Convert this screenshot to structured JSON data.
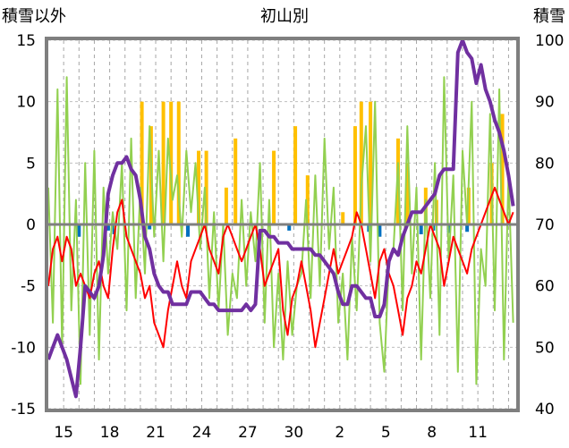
{
  "chart_data": {
    "type": "line",
    "title": "初山別",
    "left_axis": {
      "label": "積雪以外",
      "ylim": [
        -15,
        15
      ],
      "ticks": [
        15,
        10,
        5,
        0,
        -5,
        -10,
        -15
      ]
    },
    "right_axis": {
      "label": "積雪",
      "ylim": [
        40,
        100
      ],
      "ticks": [
        100,
        90,
        80,
        70,
        60,
        50,
        40
      ]
    },
    "x_tick_labels": [
      "15",
      "18",
      "21",
      "24",
      "27",
      "30",
      "2",
      "5",
      "8",
      "11"
    ],
    "x_tick_days": [
      1,
      4,
      7,
      10,
      13,
      16,
      19,
      22,
      25,
      28
    ],
    "xlim": [
      0,
      30.5
    ],
    "grid": true,
    "colors": {
      "temperature": "#ff0000",
      "wind": "#92d050",
      "snowfall": "#ffc000",
      "precip": "#0070c0",
      "snow_depth": "#7030a0",
      "frame": "#7f7f7f"
    },
    "series": [
      {
        "axis": "left",
        "color": "#92d050",
        "x": [
          0,
          0.3,
          0.6,
          0.9,
          1.2,
          1.5,
          1.8,
          2.1,
          2.4,
          2.7,
          3.0,
          3.3,
          3.6,
          3.9,
          4.2,
          4.5,
          4.8,
          5.1,
          5.4,
          5.7,
          6.0,
          6.3,
          6.6,
          6.9,
          7.2,
          7.5,
          7.8,
          8.1,
          8.4,
          8.7,
          9.0,
          9.3,
          9.6,
          9.9,
          10.2,
          10.5,
          10.8,
          11.1,
          11.4,
          11.7,
          12.0,
          12.3,
          12.6,
          12.9,
          13.2,
          13.5,
          13.8,
          14.1,
          14.4,
          14.7,
          15.0,
          15.3,
          15.6,
          15.9,
          16.2,
          16.5,
          16.8,
          17.1,
          17.4,
          17.7,
          18.0,
          18.3,
          18.6,
          18.9,
          19.2,
          19.5,
          19.8,
          20.1,
          20.4,
          20.7,
          21.0,
          21.3,
          21.6,
          21.9,
          22.2,
          22.5,
          22.8,
          23.1,
          23.4,
          23.7,
          24.0,
          24.3,
          24.6,
          24.9,
          25.2,
          25.5,
          25.8,
          26.1,
          26.4,
          26.7,
          27.0,
          27.3,
          27.6,
          27.9,
          28.2,
          28.5,
          28.8,
          29.1,
          29.4,
          29.7,
          30.0,
          30.3
        ],
        "values": [
          3,
          -8,
          11,
          -10,
          12,
          -7,
          2,
          -13,
          5,
          -9,
          6,
          -11,
          3,
          -4,
          1,
          -2,
          5,
          -7,
          7,
          -6,
          3,
          -4,
          8,
          -1,
          6,
          -3,
          7,
          2,
          4,
          -1,
          6,
          1,
          5,
          -2,
          3,
          -6,
          1,
          -7,
          0,
          -9,
          -4,
          -6,
          2,
          -5,
          1,
          -3,
          5,
          -8,
          2,
          -10,
          -4,
          -11,
          -3,
          -9,
          -5,
          -4,
          2,
          -6,
          4,
          -5,
          7,
          -2,
          3,
          -8,
          -4,
          -11,
          -1,
          -7,
          3,
          8,
          -3,
          10,
          -8,
          -12,
          -3,
          -2,
          5,
          -7,
          8,
          -4,
          3,
          -11,
          2,
          -6,
          5,
          -9,
          12,
          -3,
          4,
          -12,
          6,
          0,
          10,
          -13,
          -2,
          -5,
          9,
          -7,
          11,
          -11,
          4,
          -8
        ]
      },
      {
        "axis": "left",
        "color": "#ff0000",
        "x": [
          0,
          0.3,
          0.6,
          0.9,
          1.2,
          1.5,
          1.8,
          2.1,
          2.4,
          2.7,
          3.0,
          3.3,
          3.6,
          3.9,
          4.2,
          4.5,
          4.8,
          5.1,
          5.4,
          5.7,
          6.0,
          6.3,
          6.6,
          6.9,
          7.2,
          7.5,
          7.8,
          8.1,
          8.4,
          8.7,
          9.0,
          9.3,
          9.6,
          9.9,
          10.2,
          10.5,
          10.8,
          11.1,
          11.4,
          11.7,
          12.0,
          12.3,
          12.6,
          12.9,
          13.2,
          13.5,
          13.8,
          14.1,
          14.4,
          14.7,
          15.0,
          15.3,
          15.6,
          15.9,
          16.2,
          16.5,
          16.8,
          17.1,
          17.4,
          17.7,
          18.0,
          18.3,
          18.6,
          18.9,
          19.2,
          19.5,
          19.8,
          20.1,
          20.4,
          20.7,
          21.0,
          21.3,
          21.6,
          21.9,
          22.2,
          22.5,
          22.8,
          23.1,
          23.4,
          23.7,
          24.0,
          24.3,
          24.6,
          24.9,
          25.2,
          25.5,
          25.8,
          26.1,
          26.4,
          26.7,
          27.0,
          27.3,
          27.6,
          27.9,
          28.2,
          28.5,
          28.8,
          29.1,
          29.4,
          29.7,
          30.0,
          30.3
        ],
        "values": [
          -5,
          -2,
          -1,
          -3,
          -1,
          -2,
          -5,
          -4,
          -5,
          -6,
          -4,
          -3,
          -5,
          -6,
          -2,
          1,
          2,
          -1,
          -2,
          -3,
          -4,
          -6,
          -5,
          -8,
          -9,
          -10,
          -7,
          -5,
          -3,
          -5,
          -6,
          -3,
          -2,
          -1,
          0,
          -2,
          -3,
          -4,
          -1,
          0,
          -1,
          -2,
          -3,
          -2,
          -1,
          0,
          -2,
          -5,
          -4,
          -3,
          -2,
          -7,
          -9,
          -6,
          -5,
          -3,
          -5,
          -7,
          -10,
          -8,
          -6,
          -4,
          -2,
          -4,
          -3,
          -2,
          -1,
          1,
          0,
          -2,
          -4,
          -6,
          -3,
          -2,
          -4,
          -5,
          -7,
          -9,
          -6,
          -5,
          -3,
          -4,
          -2,
          0,
          -1,
          -2,
          -5,
          -3,
          -1,
          -2,
          -3,
          -4,
          -2,
          -1,
          0,
          1,
          2,
          3,
          2,
          1,
          0,
          1
        ]
      },
      {
        "axis": "right",
        "color": "#7030a0",
        "x": [
          0,
          0.3,
          0.6,
          0.9,
          1.2,
          1.5,
          1.8,
          2.1,
          2.4,
          2.7,
          3.0,
          3.3,
          3.6,
          3.9,
          4.2,
          4.5,
          4.8,
          5.1,
          5.4,
          5.7,
          6.0,
          6.3,
          6.6,
          6.9,
          7.2,
          7.5,
          7.8,
          8.1,
          8.4,
          8.7,
          9.0,
          9.3,
          9.6,
          9.9,
          10.2,
          10.5,
          10.8,
          11.1,
          11.4,
          11.7,
          12.0,
          12.3,
          12.6,
          12.9,
          13.2,
          13.5,
          13.8,
          14.1,
          14.4,
          14.7,
          15.0,
          15.3,
          15.6,
          15.9,
          16.2,
          16.5,
          16.8,
          17.1,
          17.4,
          17.7,
          18.0,
          18.3,
          18.6,
          18.9,
          19.2,
          19.5,
          19.8,
          20.1,
          20.4,
          20.7,
          21.0,
          21.3,
          21.6,
          21.9,
          22.2,
          22.5,
          22.8,
          23.1,
          23.4,
          23.7,
          24.0,
          24.3,
          24.6,
          24.9,
          25.2,
          25.5,
          25.8,
          26.1,
          26.4,
          26.7,
          27.0,
          27.3,
          27.6,
          27.9,
          28.2,
          28.5,
          28.8,
          29.1,
          29.4,
          29.7,
          30.0,
          30.3
        ],
        "values": [
          48,
          50,
          52,
          50,
          48,
          45,
          42,
          50,
          60,
          59,
          58,
          60,
          65,
          75,
          78,
          80,
          80,
          81,
          79,
          78,
          74,
          68,
          66,
          62,
          60,
          59,
          59,
          57,
          57,
          57,
          57,
          59,
          59,
          59,
          58,
          57,
          57,
          56,
          56,
          56,
          56,
          56,
          56,
          57,
          56,
          57,
          69,
          69,
          68,
          68,
          67,
          67,
          67,
          66,
          66,
          66,
          66,
          66,
          65,
          65,
          64,
          63,
          62,
          59,
          57,
          57,
          60,
          60,
          59,
          58,
          58,
          55,
          55,
          57,
          64,
          66,
          65,
          68,
          70,
          72,
          72,
          72,
          73,
          74,
          75,
          78,
          79,
          79,
          79,
          98,
          100,
          98,
          97,
          93,
          96,
          92,
          90,
          87,
          85,
          82,
          78,
          73
        ]
      },
      {
        "axis": "left",
        "color": "#ffc000",
        "kind": "bars",
        "x": [
          6.1,
          6.7,
          7.5,
          8.0,
          8.5,
          9.8,
          10.3,
          11.6,
          12.2,
          14.7,
          16.1,
          16.9,
          19.2,
          20.0,
          20.4,
          21.0,
          22.8,
          23.4,
          24.6,
          25.3,
          27.4,
          28.9,
          29.6
        ],
        "values": [
          10,
          8,
          10,
          10,
          10,
          6,
          6,
          3,
          7,
          6,
          8,
          4,
          1,
          8,
          10,
          10,
          7,
          5,
          3,
          2,
          3,
          5,
          9
        ]
      },
      {
        "axis": "left",
        "color": "#0070c0",
        "kind": "bars",
        "x": [
          2.0,
          3.9,
          4.3,
          6.6,
          9.1,
          15.7,
          20.9,
          21.6,
          24.3,
          25.1,
          26.1,
          27.3
        ],
        "values": [
          -1,
          -0.5,
          -0.8,
          -0.4,
          -1,
          -0.5,
          -0.6,
          -1,
          -0.8,
          -0.5,
          -0.7,
          -0.6
        ]
      }
    ]
  }
}
